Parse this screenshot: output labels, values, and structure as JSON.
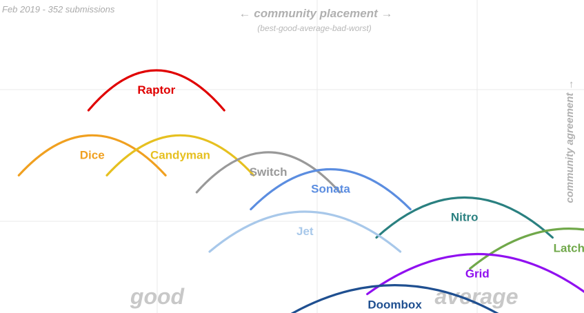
{
  "header": {
    "subtitle": "Feb 2019 - 352 submissions",
    "xlabel": "← community placement →",
    "xlabel_note": "(best-good-average-bad-worst)",
    "ylabel": "community agreement →"
  },
  "chart_data": {
    "type": "line",
    "subtitle": "Feb 2019 - 352 submissions",
    "xlabel": "← community placement →",
    "xlabel_note": "(best-good-average-bad-worst)",
    "ylabel": "community agreement →",
    "axis_labels": [
      "good",
      "average"
    ],
    "grid": true,
    "series": [
      {
        "name": "Raptor",
        "color": "#e00000",
        "peak": 1.77,
        "agreement": 0.8,
        "width": 0.74
      },
      {
        "name": "Dice",
        "color": "#f0a020",
        "peak": 1.42,
        "agreement": 0.57,
        "width": 0.8
      },
      {
        "name": "Candyman",
        "color": "#e6c020",
        "peak": 1.9,
        "agreement": 0.57,
        "width": 0.8
      },
      {
        "name": "Switch",
        "color": "#999999",
        "peak": 2.38,
        "agreement": 0.51,
        "width": 0.78
      },
      {
        "name": "Sonata",
        "color": "#5b8de0",
        "peak": 2.72,
        "agreement": 0.45,
        "width": 0.87
      },
      {
        "name": "Nitro",
        "color": "#2a8080",
        "peak": 3.45,
        "agreement": 0.35,
        "width": 0.96
      },
      {
        "name": "Jet",
        "color": "#a8c8ea",
        "peak": 2.58,
        "agreement": 0.3,
        "width": 1.04
      },
      {
        "name": "Latch",
        "color": "#70a84a",
        "peak": 4.02,
        "agreement": 0.24,
        "width": 1.08
      },
      {
        "name": "Grid",
        "color": "#9010f0",
        "peak": 3.52,
        "agreement": 0.15,
        "width": 1.2
      },
      {
        "name": "Doombox",
        "color": "#1f4f90",
        "peak": 3.07,
        "agreement": 0.04,
        "width": 1.33
      }
    ]
  }
}
